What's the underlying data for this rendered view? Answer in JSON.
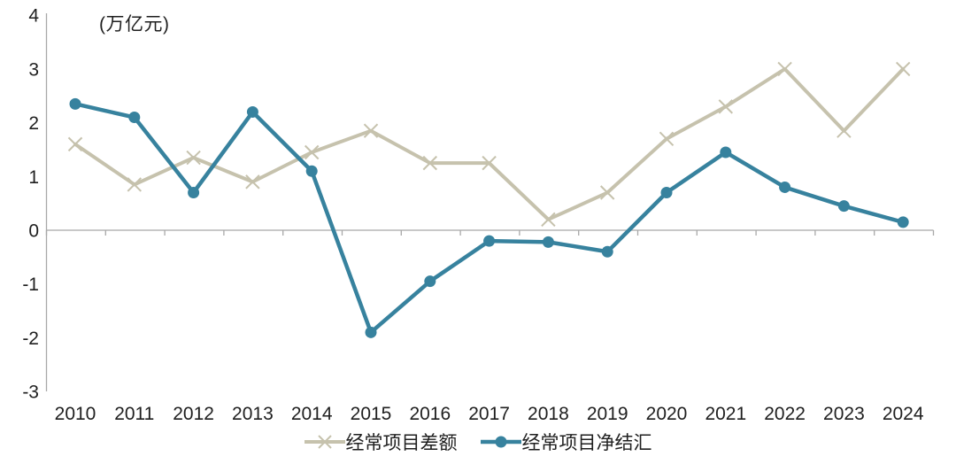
{
  "chart_data": {
    "type": "line",
    "title": "",
    "xlabel": "",
    "ylabel": "(万亿元)",
    "x": [
      "2010",
      "2011",
      "2012",
      "2013",
      "2014",
      "2015",
      "2016",
      "2017",
      "2018",
      "2019",
      "2020",
      "2021",
      "2022",
      "2023",
      "2024"
    ],
    "ylim": [
      -3,
      4
    ],
    "yticks": [
      4,
      3,
      2,
      1,
      0,
      -1,
      -2,
      -3
    ],
    "grid": false,
    "legend_position": "bottom",
    "axis_color": "#a8a8a8",
    "text_color": "#1f1f1f",
    "series": [
      {
        "name": "经常项目差额",
        "marker": "x",
        "color": "#c6c2ad",
        "values": [
          1.6,
          0.85,
          1.35,
          0.9,
          1.45,
          1.85,
          1.25,
          1.25,
          0.2,
          0.7,
          1.7,
          2.3,
          3.0,
          1.85,
          3.0
        ]
      },
      {
        "name": "经常项目净结汇",
        "marker": "circle",
        "color": "#37829e",
        "values": [
          2.35,
          2.1,
          0.7,
          2.2,
          1.1,
          -1.9,
          -0.95,
          -0.2,
          -0.22,
          -0.4,
          0.7,
          1.45,
          0.8,
          0.45,
          0.15
        ]
      }
    ]
  }
}
